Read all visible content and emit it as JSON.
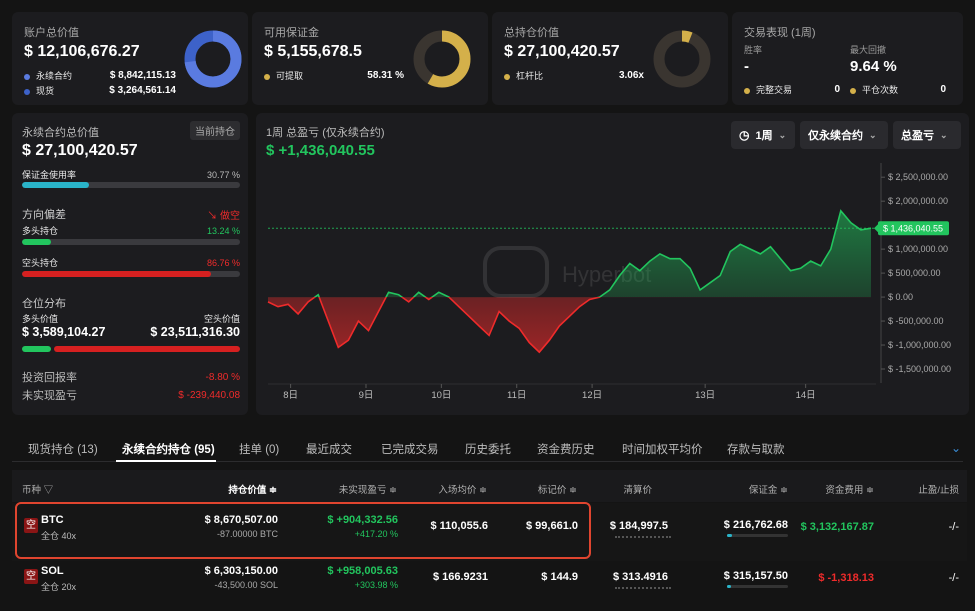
{
  "cards": {
    "account": {
      "label": "账户总价值",
      "value": "$ 12,106,676.27",
      "rows": [
        {
          "label": "永续合约",
          "value": "$ 8,842,115.13"
        },
        {
          "label": "现货",
          "value": "$ 3,264,561.14"
        }
      ],
      "colors": [
        "#5a7be0",
        "#3d62c9"
      ],
      "fraction": 0.73
    },
    "margin": {
      "label": "可用保证金",
      "value": "$ 5,155,678.5",
      "row_label": "可提取",
      "row_value": "58.31 %",
      "color": "#d4b04a",
      "fraction": 0.5831
    },
    "positions": {
      "label": "总持仓价值",
      "value": "$ 27,100,420.57",
      "row_label": "杠杆比",
      "row_value": "3.06x",
      "color": "#d4b04a",
      "fraction": 0.06
    },
    "perf": {
      "label": "交易表现 (1周)",
      "win_label": "胜率",
      "win_value": "-",
      "dd_label": "最大回撤",
      "dd_value": "9.64 %",
      "closed_label": "完整交易",
      "closed_value": "0",
      "flat_label": "平仓次数",
      "flat_value": "0"
    }
  },
  "left": {
    "title": "永续合约总价值",
    "badge": "当前持仓",
    "value": "$ 27,100,420.57",
    "usage_label": "保证金使用率",
    "usage_value": "30.77 %",
    "usage_fraction": 0.3077,
    "bias_label": "方向偏差",
    "bias_value": "做空",
    "long_label": "多头持仓",
    "long_value": "13.24 %",
    "long_fraction": 0.1324,
    "short_label": "空头持仓",
    "short_value": "86.76 %",
    "short_fraction": 0.8676,
    "dist_label": "仓位分布",
    "dist_long_label": "多头价值",
    "dist_short_label": "空头价值",
    "dist_long_value": "$ 3,589,104.27",
    "dist_short_value": "$ 23,511,316.30",
    "dist_long_fraction": 0.1324,
    "roi_label": "投资回报率",
    "roi_value": "-8.80 %",
    "upl_label": "未实现盈亏",
    "upl_value": "$ -239,440.08"
  },
  "chart": {
    "title": "1周 总盈亏 (仅永续合约)",
    "value": "$ +1,436,040.55",
    "sel_period": "1周",
    "sel_type": "仅永续合约",
    "sel_metric": "总盈亏",
    "watermark": "Hyperbot",
    "current_label": "$ 1,436,040.55"
  },
  "chart_data": {
    "type": "area",
    "x_ticks": [
      "8日",
      "9日",
      "10日",
      "11日",
      "12日",
      "13日",
      "14日"
    ],
    "x_tick_pos": [
      4.5,
      19.5,
      34.5,
      49.5,
      64.5,
      87,
      107
    ],
    "yticks": [
      2500000,
      2000000,
      1500000,
      1000000,
      500000,
      0,
      -500000,
      -1000000,
      -1500000
    ],
    "ytick_labels": [
      "$ 2,500,000.00",
      "$ 2,000,000.00",
      "$ 1,500,000.00",
      "$ 1,000,000.00",
      "$ 500,000.00",
      "$ 0.00",
      "$ -500,000.00",
      "$ -1,000,000.00",
      "$ -1,500,000.00"
    ],
    "ylim": [
      -1750000,
      2650000
    ],
    "xlim": [
      0,
      121
    ],
    "x": [
      0,
      2,
      4,
      6,
      8,
      10,
      12,
      14,
      16,
      18,
      20,
      22,
      24,
      26,
      28,
      30,
      32,
      34,
      36,
      38,
      40,
      42,
      44,
      46,
      48,
      50,
      52,
      54,
      56,
      58,
      60,
      62,
      64,
      66,
      68,
      70,
      72,
      74,
      76,
      78,
      80,
      82,
      84,
      86,
      88,
      90,
      92,
      94,
      96,
      98,
      100,
      102,
      104,
      106,
      108,
      110,
      112,
      114,
      116,
      118,
      120
    ],
    "y": [
      -100000,
      -200000,
      -150000,
      -350000,
      -100000,
      50000,
      -500000,
      -1050000,
      -900000,
      -500000,
      -700000,
      -300000,
      100000,
      50000,
      -100000,
      100000,
      -50000,
      100000,
      0,
      -200000,
      -400000,
      -600000,
      -800000,
      -300000,
      -500000,
      -650000,
      -950000,
      -1150000,
      -900000,
      -600000,
      -400000,
      -200000,
      -50000,
      0,
      150000,
      450000,
      700000,
      550000,
      750000,
      900000,
      800000,
      800000,
      600000,
      150000,
      300000,
      450000,
      950000,
      1100000,
      1000000,
      900000,
      1050000,
      800000,
      550000,
      600000,
      750000,
      650000,
      1000000,
      1800000,
      1550000,
      1400000,
      1436040
    ]
  },
  "tabs": [
    "现货持仓 (13)",
    "永续合约持仓 (95)",
    "挂单 (0)",
    "最近成交",
    "已完成交易",
    "历史委托",
    "资金费历史",
    "时间加权平均价",
    "存款与取款"
  ],
  "active_tab": 1,
  "headers": [
    "币种",
    "持仓价值",
    "未实现盈亏",
    "入场均价",
    "标记价",
    "清算价",
    "保证金",
    "资金费用",
    "止盈/止损"
  ],
  "rows": [
    {
      "badge": "空",
      "coin": "BTC",
      "mode": "全仓 40x",
      "value": "$ 8,670,507.00",
      "size": "-87.00000 BTC",
      "pnl": "$ +904,332.56",
      "pnl_pct": "+417.20 %",
      "entry": "$ 110,055.6",
      "mark": "$ 99,661.0",
      "liq": "$ 184,997.5",
      "margin": "$ 216,762.68",
      "funding": "$ 3,132,167.87",
      "tpsl": "-/-",
      "funding_color": "#22c55e",
      "liq_fraction": 0.55,
      "margin_fraction": 0.08
    },
    {
      "badge": "空",
      "coin": "SOL",
      "mode": "全仓 20x",
      "value": "$ 6,303,150.00",
      "size": "-43,500.00 SOL",
      "pnl": "$ +958,005.63",
      "pnl_pct": "+303.98 %",
      "entry": "$ 166.9231",
      "mark": "$ 144.9",
      "liq": "$ 313.4916",
      "margin": "$ 315,157.50",
      "funding": "$ -1,318.13",
      "tpsl": "-/-",
      "funding_color": "#ef2b2b",
      "liq_fraction": 0.45,
      "margin_fraction": 0.06
    }
  ]
}
